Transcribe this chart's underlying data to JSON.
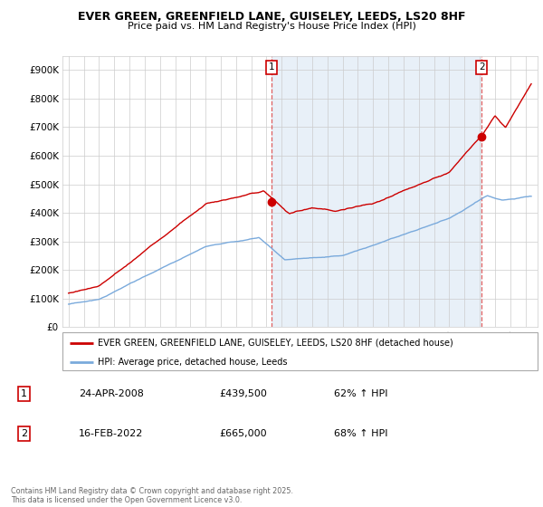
{
  "title": "EVER GREEN, GREENFIELD LANE, GUISELEY, LEEDS, LS20 8HF",
  "subtitle": "Price paid vs. HM Land Registry's House Price Index (HPI)",
  "legend_line1": "EVER GREEN, GREENFIELD LANE, GUISELEY, LEEDS, LS20 8HF (detached house)",
  "legend_line2": "HPI: Average price, detached house, Leeds",
  "annotation1_date": "24-APR-2008",
  "annotation1_price": "£439,500",
  "annotation1_hpi": "62% ↑ HPI",
  "annotation2_date": "16-FEB-2022",
  "annotation2_price": "£665,000",
  "annotation2_hpi": "68% ↑ HPI",
  "footnote": "Contains HM Land Registry data © Crown copyright and database right 2025.\nThis data is licensed under the Open Government Licence v3.0.",
  "property_color": "#cc0000",
  "hpi_color": "#7aaadc",
  "bg_shade_color": "#e8f0f8",
  "ylim": [
    0,
    950000
  ],
  "yticks": [
    0,
    100000,
    200000,
    300000,
    400000,
    500000,
    600000,
    700000,
    800000,
    900000
  ],
  "sale1_year": 2008.32,
  "sale1_price": 439500,
  "sale2_year": 2022.12,
  "sale2_price": 665000
}
